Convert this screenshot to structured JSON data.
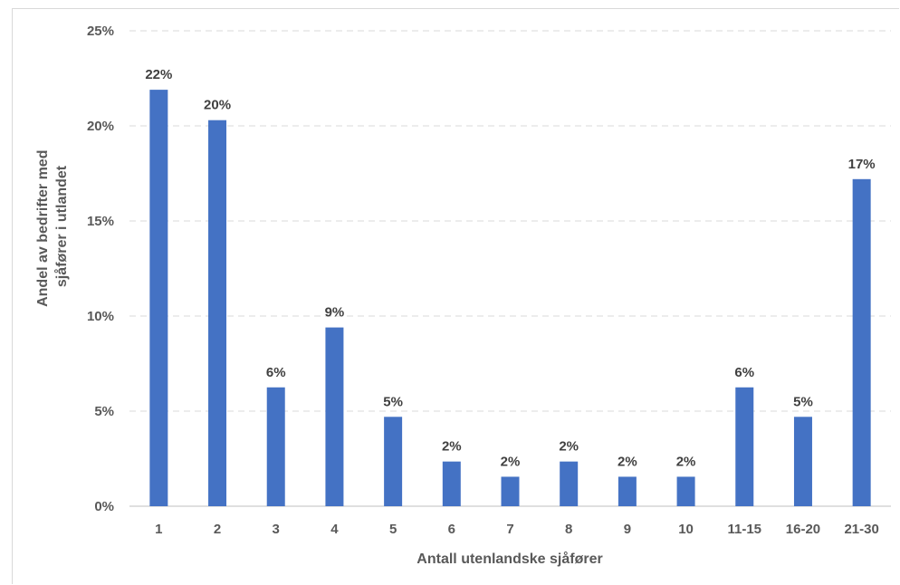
{
  "chart_data": {
    "type": "bar",
    "categories": [
      "1",
      "2",
      "3",
      "4",
      "5",
      "6",
      "7",
      "8",
      "9",
      "10",
      "11-15",
      "16-20",
      "21-30"
    ],
    "values": [
      21.9,
      20.3,
      6.25,
      9.4,
      4.7,
      2.35,
      1.55,
      2.35,
      1.55,
      1.55,
      6.25,
      4.7,
      17.2
    ],
    "data_labels": [
      "22%",
      "20%",
      "6%",
      "9%",
      "5%",
      "2%",
      "2%",
      "2%",
      "2%",
      "2%",
      "6%",
      "5%",
      "17%"
    ],
    "yticks": [
      "0%",
      "5%",
      "10%",
      "15%",
      "20%",
      "25%"
    ],
    "ylim": [
      0,
      25
    ],
    "xlabel": "Antall utenlandske sjåfører",
    "ylabel_lines": [
      "Andel av bedrifter med",
      "sjåfører i utlandet"
    ],
    "bar_color": "#4472c4",
    "grid": true
  }
}
